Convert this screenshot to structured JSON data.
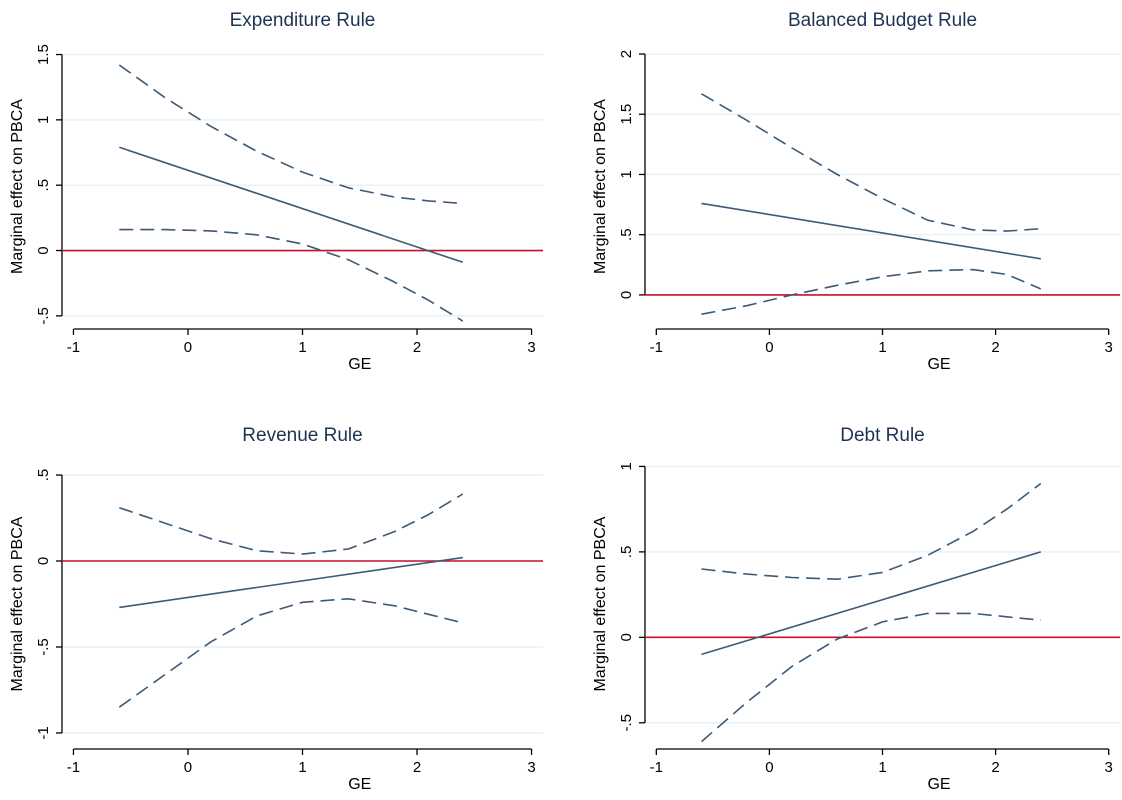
{
  "colors": {
    "axis": "#000000",
    "grid": "#e6eef1",
    "estimate": "#3c5a77",
    "ci": "#3c5a77",
    "reference": "#c8102e",
    "title": "#1f3454"
  },
  "chart_data": [
    {
      "type": "line",
      "title": "Expenditure Rule",
      "xlabel": "GE",
      "ylabel": "Marginal effect on PBCA",
      "xlim": [
        -1.1,
        3.1
      ],
      "ylim": [
        -0.57,
        1.55
      ],
      "xticks": [
        -1,
        0,
        1,
        2,
        3
      ],
      "xtick_labels": [
        "-1",
        "0",
        "1",
        "2",
        "3"
      ],
      "yticks": [
        -0.5,
        0,
        0.5,
        1,
        1.5
      ],
      "ytick_labels": [
        "-.5",
        "0",
        ".5",
        "1",
        "1.5"
      ],
      "grid": true,
      "reference_line": 0,
      "series": [
        {
          "role": "estimate",
          "style": "solid",
          "x": [
            -0.6,
            2.4
          ],
          "y": [
            0.79,
            -0.09
          ]
        },
        {
          "role": "upper_ci",
          "style": "dashed",
          "x": [
            -0.6,
            -0.2,
            0.2,
            0.6,
            1.0,
            1.4,
            1.8,
            2.1,
            2.4
          ],
          "y": [
            1.42,
            1.17,
            0.95,
            0.76,
            0.6,
            0.48,
            0.41,
            0.38,
            0.36
          ]
        },
        {
          "role": "lower_ci",
          "style": "dashed",
          "x": [
            -0.6,
            -0.2,
            0.2,
            0.6,
            1.0,
            1.4,
            1.8,
            2.1,
            2.4
          ],
          "y": [
            0.16,
            0.16,
            0.15,
            0.12,
            0.05,
            -0.07,
            -0.24,
            -0.38,
            -0.54
          ]
        }
      ]
    },
    {
      "type": "line",
      "title": "Balanced Budget Rule",
      "xlabel": "GE",
      "ylabel": "Marginal effect on PBCA",
      "xlim": [
        -1.1,
        3.1
      ],
      "ylim": [
        -0.25,
        2.05
      ],
      "xticks": [
        -1,
        0,
        1,
        2,
        3
      ],
      "xtick_labels": [
        "-1",
        "0",
        "1",
        "2",
        "3"
      ],
      "yticks": [
        0,
        0.5,
        1,
        1.5,
        2
      ],
      "ytick_labels": [
        "0",
        ".5",
        "1",
        "1.5",
        "2"
      ],
      "grid": true,
      "reference_line": 0,
      "series": [
        {
          "role": "estimate",
          "style": "solid",
          "x": [
            -0.6,
            2.4
          ],
          "y": [
            0.76,
            0.3
          ]
        },
        {
          "role": "upper_ci",
          "style": "dashed",
          "x": [
            -0.6,
            -0.2,
            0.2,
            0.6,
            1.0,
            1.4,
            1.8,
            2.1,
            2.4
          ],
          "y": [
            1.67,
            1.45,
            1.22,
            1.0,
            0.8,
            0.62,
            0.54,
            0.53,
            0.55
          ]
        },
        {
          "role": "lower_ci",
          "style": "dashed",
          "x": [
            -0.6,
            -0.2,
            0.2,
            0.6,
            1.0,
            1.4,
            1.8,
            2.1,
            2.4
          ],
          "y": [
            -0.16,
            -0.09,
            0.0,
            0.08,
            0.15,
            0.2,
            0.21,
            0.17,
            0.05
          ]
        }
      ]
    },
    {
      "type": "line",
      "title": "Revenue Rule",
      "xlabel": "GE",
      "ylabel": "Marginal effect on PBCA",
      "xlim": [
        -1.1,
        3.1
      ],
      "ylim": [
        -1.07,
        0.57
      ],
      "xticks": [
        -1,
        0,
        1,
        2,
        3
      ],
      "xtick_labels": [
        "-1",
        "0",
        "1",
        "2",
        "3"
      ],
      "yticks": [
        -1,
        -0.5,
        0,
        0.5
      ],
      "ytick_labels": [
        "-1",
        "-.5",
        "0",
        ".5"
      ],
      "grid": true,
      "reference_line": 0,
      "series": [
        {
          "role": "estimate",
          "style": "solid",
          "x": [
            -0.6,
            2.4
          ],
          "y": [
            -0.27,
            0.02
          ]
        },
        {
          "role": "upper_ci",
          "style": "dashed",
          "x": [
            -0.6,
            -0.2,
            0.2,
            0.6,
            1.0,
            1.4,
            1.8,
            2.1,
            2.4
          ],
          "y": [
            0.31,
            0.22,
            0.13,
            0.06,
            0.04,
            0.07,
            0.17,
            0.27,
            0.39
          ]
        },
        {
          "role": "lower_ci",
          "style": "dashed",
          "x": [
            -0.6,
            -0.2,
            0.2,
            0.6,
            1.0,
            1.4,
            1.8,
            2.1,
            2.4
          ],
          "y": [
            -0.85,
            -0.66,
            -0.47,
            -0.32,
            -0.24,
            -0.22,
            -0.26,
            -0.31,
            -0.36
          ]
        }
      ]
    },
    {
      "type": "line",
      "title": "Debt Rule",
      "xlabel": "GE",
      "ylabel": "Marginal effect on PBCA",
      "xlim": [
        -1.1,
        3.1
      ],
      "ylim": [
        -0.63,
        1.02
      ],
      "xticks": [
        -1,
        0,
        1,
        2,
        3
      ],
      "xtick_labels": [
        "-1",
        "0",
        "1",
        "2",
        "3"
      ],
      "yticks": [
        -0.5,
        0,
        0.5,
        1
      ],
      "ytick_labels": [
        "-.5",
        "0",
        ".5",
        "1"
      ],
      "grid": true,
      "reference_line": 0,
      "series": [
        {
          "role": "estimate",
          "style": "solid",
          "x": [
            -0.6,
            2.4
          ],
          "y": [
            -0.1,
            0.5
          ]
        },
        {
          "role": "upper_ci",
          "style": "dashed",
          "x": [
            -0.6,
            -0.2,
            0.2,
            0.6,
            1.0,
            1.4,
            1.8,
            2.1,
            2.4
          ],
          "y": [
            0.4,
            0.37,
            0.35,
            0.34,
            0.38,
            0.48,
            0.62,
            0.75,
            0.9
          ]
        },
        {
          "role": "lower_ci",
          "style": "dashed",
          "x": [
            -0.6,
            -0.2,
            0.2,
            0.6,
            1.0,
            1.4,
            1.8,
            2.1,
            2.4
          ],
          "y": [
            -0.61,
            -0.38,
            -0.17,
            -0.01,
            0.09,
            0.14,
            0.14,
            0.12,
            0.1
          ]
        }
      ]
    }
  ]
}
